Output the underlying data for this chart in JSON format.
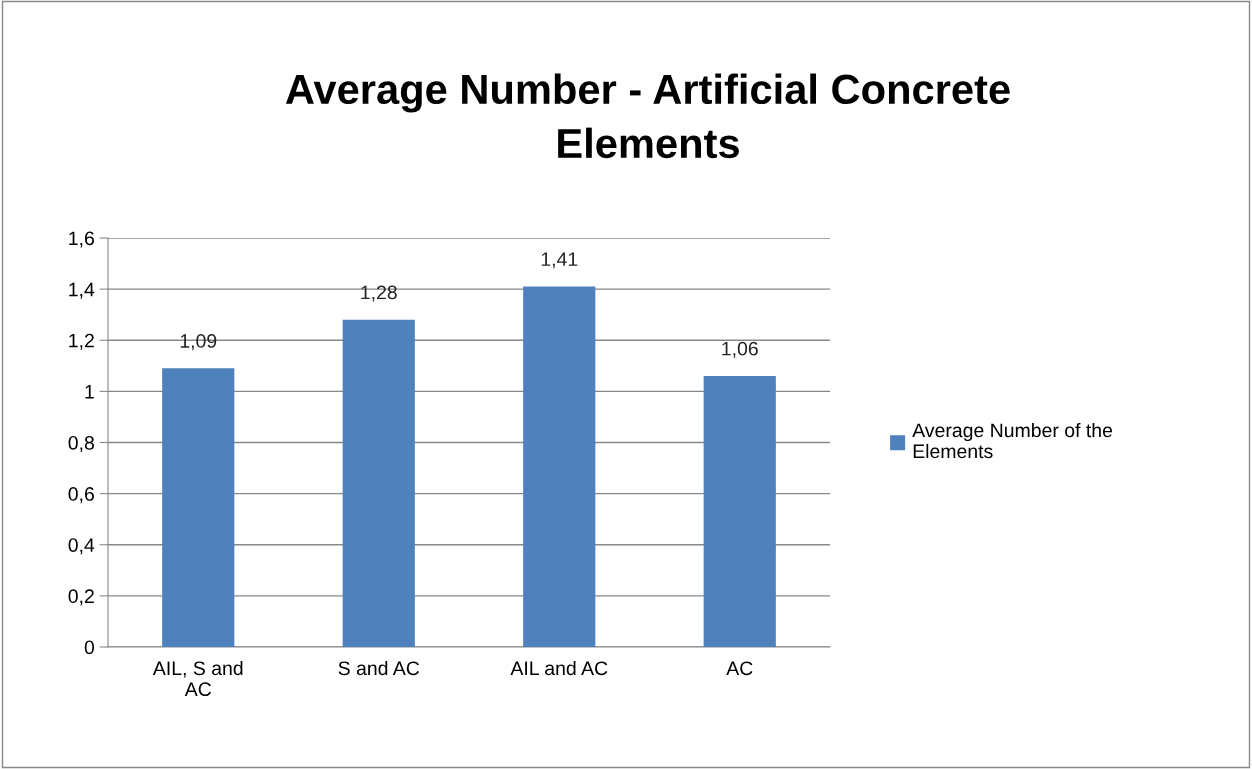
{
  "chart_data": {
    "type": "bar",
    "title": "Average Number - Artificial Concrete Elements",
    "categories": [
      "AIL, S and AC",
      "S and AC",
      "AIL and AC",
      "AC"
    ],
    "series": [
      {
        "name": "Average Number of the Elements",
        "color": "#4f81bd",
        "values": [
          1.09,
          1.28,
          1.41,
          1.06
        ],
        "value_labels": [
          "1,09",
          "1,28",
          "1,41",
          "1,06"
        ]
      }
    ],
    "ylim": [
      0,
      1.6
    ],
    "yticks": [
      0,
      {
        "value": 0.2,
        "label": "0,2"
      },
      {
        "value": 0.4,
        "label": "0,4"
      },
      {
        "value": 0.6,
        "label": "0,6"
      },
      {
        "value": 0.8,
        "label": "0,8"
      },
      1,
      {
        "value": 1.2,
        "label": "1,2"
      },
      {
        "value": 1.4,
        "label": "1,4"
      },
      {
        "value": 1.6,
        "label": "1,6"
      }
    ],
    "grid": "y",
    "legend": "right"
  }
}
